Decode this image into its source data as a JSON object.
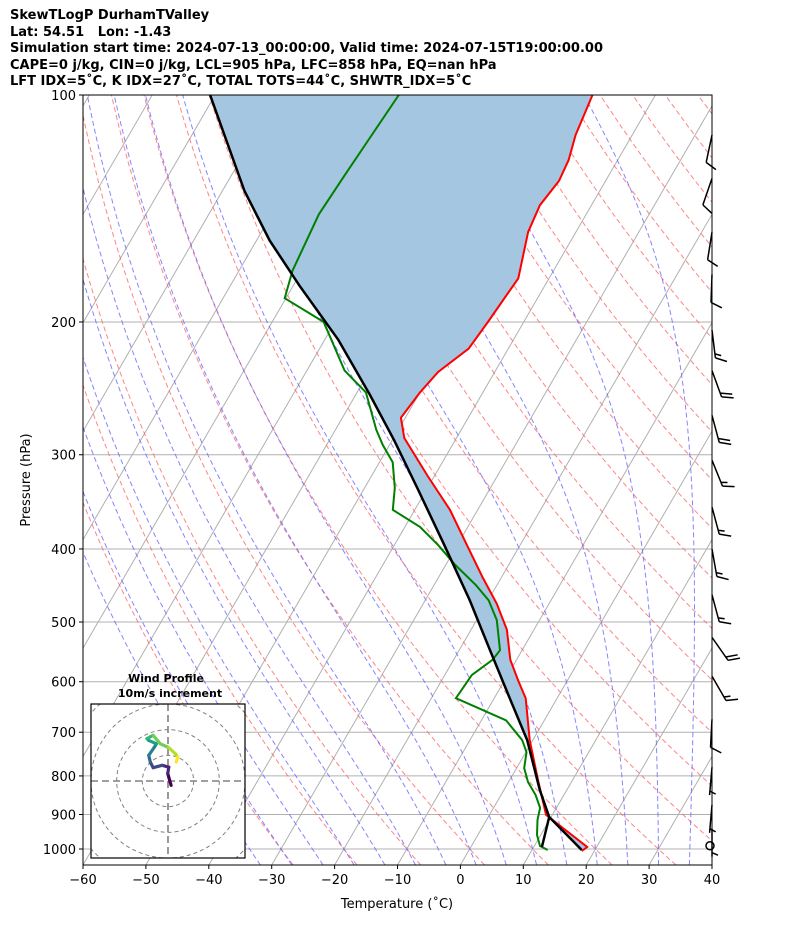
{
  "header": {
    "title": "SkewTLogP DurhamTValley",
    "location": "Lat: 54.51   Lon: -1.43",
    "times": "Simulation start time: 2024-07-13_00:00:00, Valid time: 2024-07-15T19:00:00.00",
    "indices1": "CAPE=0 j/kg, CIN=0 j/kg, LCL=905 hPa, LFC=858 hPa, EQ=nan hPa",
    "indices2": "LFT IDX=5˚C, K IDX=27˚C, TOTAL TOTS=44˚C, SHWTR_IDX=5˚C"
  },
  "colors": {
    "temperature": "#ff0000",
    "dewpoint": "#008000",
    "parcel": "#000000",
    "shade": "#a4c6e0",
    "dry_adiabat": "#ff6666",
    "moist_adiabat": "#6666ff",
    "isotherm": "#b0b0b0"
  },
  "chart_data": {
    "type": "skewt",
    "xlabel": "Temperature (˚C)",
    "ylabel": "Pressure (hPa)",
    "xlim": [
      -60,
      40
    ],
    "ylim": [
      1050,
      100
    ],
    "xticks": [
      -60,
      -50,
      -40,
      -30,
      -20,
      -10,
      0,
      10,
      20,
      30,
      40
    ],
    "yticks": [
      100,
      200,
      300,
      400,
      500,
      600,
      700,
      800,
      900,
      1000
    ],
    "grid": true,
    "dry_adiabats_theta_C": [
      -30,
      -20,
      -10,
      0,
      10,
      20,
      30,
      40,
      50,
      60,
      70,
      80,
      90,
      100,
      110,
      120,
      130,
      140,
      150,
      160,
      170,
      180,
      190
    ],
    "moist_adiabats_T1000_C": [
      -35,
      -30,
      -25,
      -20,
      -15,
      -10,
      -5,
      0,
      5,
      10,
      15,
      20,
      25,
      30,
      35
    ],
    "temperature": {
      "p": [
        100,
        113,
        122,
        130,
        140,
        152,
        175,
        187,
        200,
        217,
        233,
        248,
        268,
        285,
        320,
        355,
        395,
        437,
        473,
        512,
        561,
        597,
        631,
        717,
        810,
        901,
        994,
        1006
      ],
      "T": [
        -50.0,
        -49.0,
        -47.8,
        -47.4,
        -48.2,
        -47.6,
        -44.9,
        -45.3,
        -45.7,
        -46.3,
        -49.0,
        -50.0,
        -50.7,
        -48.3,
        -41.1,
        -34.4,
        -28.5,
        -22.9,
        -18.3,
        -14.3,
        -11.0,
        -7.9,
        -5.0,
        -0.5,
        4.5,
        9.0,
        18.5,
        18.0
      ]
    },
    "dewpoint": {
      "p": [
        100,
        113,
        128,
        144,
        171,
        186,
        200,
        232,
        248,
        278,
        291,
        307,
        332,
        355,
        374,
        395,
        420,
        447,
        468,
        497,
        545,
        561,
        588,
        631,
        675,
        717,
        744,
        781,
        815,
        848,
        882,
        915,
        958,
        991,
        1003
      ],
      "T": [
        -80.8,
        -81.4,
        -82.0,
        -82.5,
        -81.5,
        -80.2,
        -71.8,
        -64.0,
        -58.6,
        -53.5,
        -51.1,
        -47.9,
        -45.2,
        -43.5,
        -37.6,
        -33.1,
        -28.5,
        -23.3,
        -19.9,
        -16.8,
        -13.5,
        -13.8,
        -15.7,
        -16.1,
        -6.1,
        -1.7,
        0.1,
        1.2,
        3.1,
        5.5,
        7.4,
        8.1,
        9.4,
        10.9,
        12.5
      ]
    },
    "parcel": {
      "p": [
        1003,
        907,
        835,
        717,
        635,
        545,
        468,
        395,
        334,
        287,
        250,
        211,
        179,
        156,
        134,
        100
      ],
      "T": [
        17.9,
        9.7,
        5.7,
        -0.9,
        -7.2,
        -15.1,
        -22.9,
        -32.1,
        -41.3,
        -49.7,
        -57.7,
        -67.9,
        -79.0,
        -87.9,
        -96.5,
        -110.8
      ]
    },
    "mixing_line": {
      "p": [
        994,
        907
      ],
      "T": [
        11.3,
        9.7
      ]
    },
    "wind_barbs": [
      {
        "p": 113,
        "dir": 192,
        "speed": 10
      },
      {
        "p": 129,
        "dir": 199,
        "speed": 10
      },
      {
        "p": 152,
        "dir": 189,
        "speed": 10
      },
      {
        "p": 173,
        "dir": 182,
        "speed": 10
      },
      {
        "p": 205,
        "dir": 173,
        "speed": 15
      },
      {
        "p": 232,
        "dir": 160,
        "speed": 20
      },
      {
        "p": 266,
        "dir": 165,
        "speed": 20
      },
      {
        "p": 305,
        "dir": 158,
        "speed": 15
      },
      {
        "p": 352,
        "dir": 165,
        "speed": 15
      },
      {
        "p": 400,
        "dir": 170,
        "speed": 15
      },
      {
        "p": 460,
        "dir": 165,
        "speed": 15
      },
      {
        "p": 524,
        "dir": 145,
        "speed": 20
      },
      {
        "p": 590,
        "dir": 150,
        "speed": 15
      },
      {
        "p": 673,
        "dir": 183,
        "speed": 10
      },
      {
        "p": 779,
        "dir": 185,
        "speed": 5
      },
      {
        "p": 874,
        "dir": 185,
        "speed": 5
      },
      {
        "p": 940,
        "dir": 180,
        "speed": 5
      },
      {
        "p": 990,
        "dir": 0,
        "speed": 0
      }
    ],
    "hodograph": {
      "title": "Wind Profile",
      "subtitle": "10m/s increment",
      "ring_step_ms": 10,
      "range_ms": 30,
      "u": [
        1.2,
        -0.1,
        0.3,
        -2.3,
        -5.8,
        -6.9,
        -7.5,
        -5.3,
        -4.5,
        -7.5,
        -8.2,
        -5.8,
        -3.0,
        0.3,
        2.9,
        3.8,
        3.2
      ],
      "v": [
        -1.7,
        2.9,
        5.4,
        6.1,
        5.2,
        7.4,
        10.0,
        13.2,
        14.5,
        15.8,
        16.5,
        17.8,
        14.5,
        13.0,
        10.6,
        9.3,
        7.4
      ]
    }
  }
}
